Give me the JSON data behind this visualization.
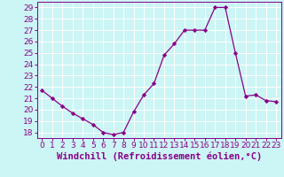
{
  "x": [
    0,
    1,
    2,
    3,
    4,
    5,
    6,
    7,
    8,
    9,
    10,
    11,
    12,
    13,
    14,
    15,
    16,
    17,
    18,
    19,
    20,
    21,
    22,
    23
  ],
  "y": [
    21.7,
    21.0,
    20.3,
    19.7,
    19.2,
    18.7,
    18.0,
    17.8,
    18.0,
    19.8,
    21.3,
    22.3,
    24.8,
    25.8,
    27.0,
    27.0,
    27.0,
    29.0,
    29.0,
    25.0,
    21.2,
    21.3,
    20.8,
    20.7
  ],
  "line_color": "#880088",
  "marker_color": "#880088",
  "bg_color": "#CCF5F5",
  "grid_color": "#FFFFFF",
  "xlabel": "Windchill (Refroidissement éolien,°C)",
  "xlabel_color": "#880088",
  "tick_label_color": "#880088",
  "ylim": [
    17.5,
    29.5
  ],
  "xlim": [
    -0.5,
    23.5
  ],
  "yticks": [
    18,
    19,
    20,
    21,
    22,
    23,
    24,
    25,
    26,
    27,
    28,
    29
  ],
  "xtick_labels": [
    "0",
    "1",
    "2",
    "3",
    "4",
    "5",
    "6",
    "7",
    "8",
    "9",
    "10",
    "11",
    "12",
    "13",
    "14",
    "15",
    "16",
    "17",
    "18",
    "19",
    "20",
    "21",
    "22",
    "23"
  ],
  "tick_fontsize": 6.5,
  "xlabel_fontsize": 7.5
}
